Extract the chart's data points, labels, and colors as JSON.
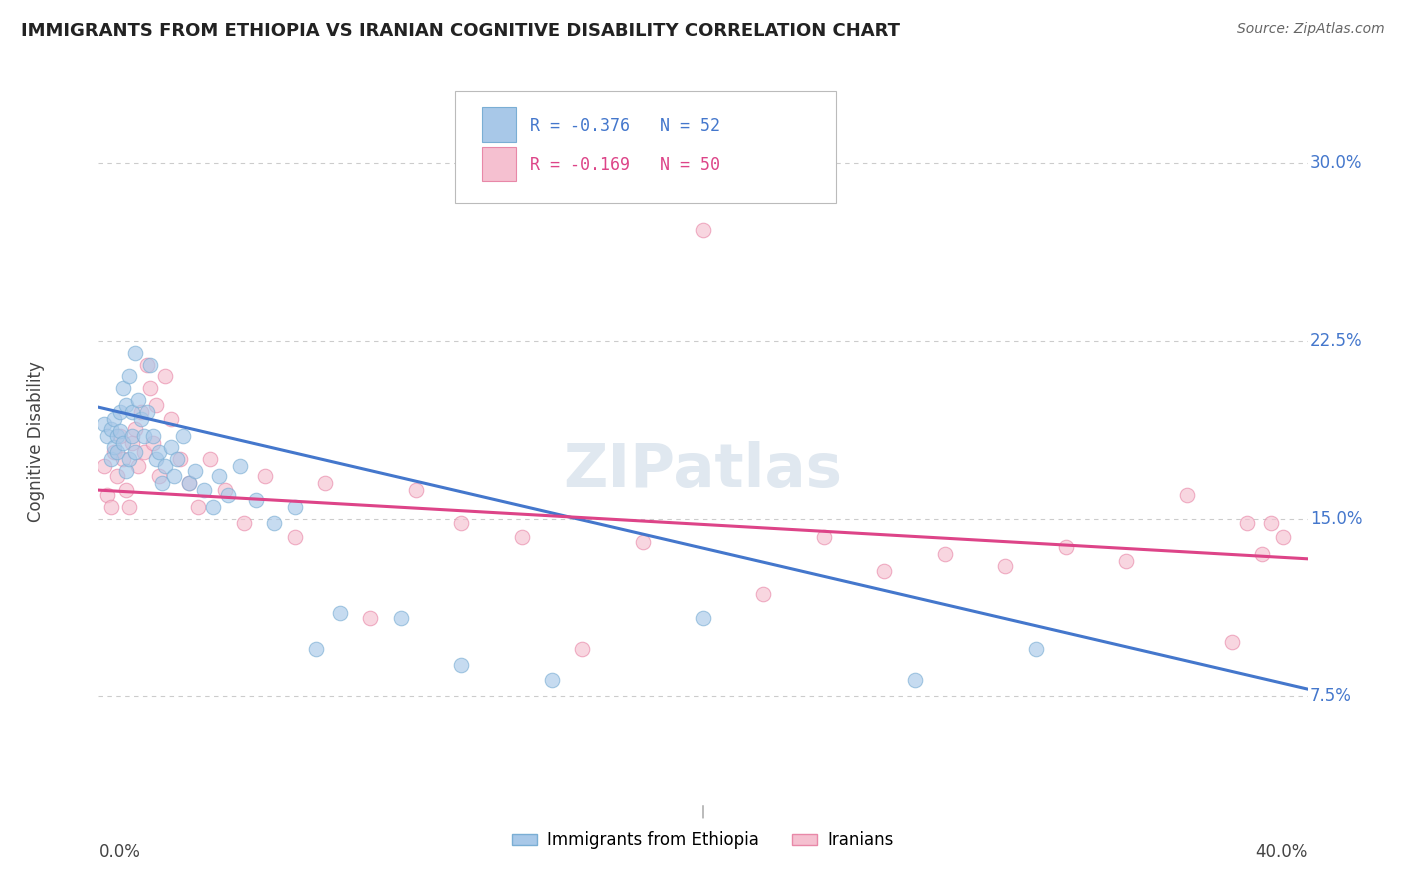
{
  "title": "IMMIGRANTS FROM ETHIOPIA VS IRANIAN COGNITIVE DISABILITY CORRELATION CHART",
  "source": "Source: ZipAtlas.com",
  "ylabel": "Cognitive Disability",
  "xlim": [
    0.0,
    0.4
  ],
  "ylim": [
    0.03,
    0.335
  ],
  "yticks": [
    0.075,
    0.15,
    0.225,
    0.3
  ],
  "ytick_labels": [
    "7.5%",
    "15.0%",
    "22.5%",
    "30.0%"
  ],
  "xtick_left": "0.0%",
  "xtick_right": "40.0%",
  "grid_color": "#cccccc",
  "background_color": "#ffffff",
  "ethiopia_color": "#a8c8e8",
  "ethiopia_edge_color": "#7aaed4",
  "iran_color": "#f5c0d0",
  "iran_edge_color": "#e888a8",
  "regression_ethiopia_color": "#4477cc",
  "regression_iran_color": "#dd4488",
  "watermark_color": "#e0e8f0",
  "R_ethiopia": -0.376,
  "N_ethiopia": 52,
  "R_iran": -0.169,
  "N_iran": 50,
  "legend_label_ethiopia": "Immigrants from Ethiopia",
  "legend_label_iran": "Iranians",
  "ethiopia_x": [
    0.002,
    0.003,
    0.004,
    0.004,
    0.005,
    0.005,
    0.006,
    0.006,
    0.007,
    0.007,
    0.008,
    0.008,
    0.009,
    0.009,
    0.01,
    0.01,
    0.011,
    0.011,
    0.012,
    0.012,
    0.013,
    0.014,
    0.015,
    0.016,
    0.017,
    0.018,
    0.019,
    0.02,
    0.021,
    0.022,
    0.024,
    0.025,
    0.026,
    0.028,
    0.03,
    0.032,
    0.035,
    0.038,
    0.04,
    0.043,
    0.047,
    0.052,
    0.058,
    0.065,
    0.072,
    0.08,
    0.1,
    0.12,
    0.15,
    0.2,
    0.27,
    0.31
  ],
  "ethiopia_y": [
    0.19,
    0.185,
    0.188,
    0.175,
    0.192,
    0.18,
    0.185,
    0.178,
    0.195,
    0.187,
    0.205,
    0.182,
    0.198,
    0.17,
    0.175,
    0.21,
    0.185,
    0.195,
    0.178,
    0.22,
    0.2,
    0.192,
    0.185,
    0.195,
    0.215,
    0.185,
    0.175,
    0.178,
    0.165,
    0.172,
    0.18,
    0.168,
    0.175,
    0.185,
    0.165,
    0.17,
    0.162,
    0.155,
    0.168,
    0.16,
    0.172,
    0.158,
    0.148,
    0.155,
    0.095,
    0.11,
    0.108,
    0.088,
    0.082,
    0.108,
    0.082,
    0.095
  ],
  "iran_x": [
    0.002,
    0.003,
    0.004,
    0.005,
    0.006,
    0.007,
    0.008,
    0.009,
    0.01,
    0.011,
    0.012,
    0.013,
    0.014,
    0.015,
    0.016,
    0.017,
    0.018,
    0.019,
    0.02,
    0.022,
    0.024,
    0.027,
    0.03,
    0.033,
    0.037,
    0.042,
    0.048,
    0.055,
    0.065,
    0.075,
    0.09,
    0.105,
    0.12,
    0.14,
    0.16,
    0.18,
    0.2,
    0.22,
    0.24,
    0.26,
    0.28,
    0.3,
    0.32,
    0.34,
    0.36,
    0.375,
    0.38,
    0.385,
    0.388,
    0.392
  ],
  "iran_y": [
    0.172,
    0.16,
    0.155,
    0.178,
    0.168,
    0.185,
    0.175,
    0.162,
    0.155,
    0.182,
    0.188,
    0.172,
    0.195,
    0.178,
    0.215,
    0.205,
    0.182,
    0.198,
    0.168,
    0.21,
    0.192,
    0.175,
    0.165,
    0.155,
    0.175,
    0.162,
    0.148,
    0.168,
    0.142,
    0.165,
    0.108,
    0.162,
    0.148,
    0.142,
    0.095,
    0.14,
    0.272,
    0.118,
    0.142,
    0.128,
    0.135,
    0.13,
    0.138,
    0.132,
    0.16,
    0.098,
    0.148,
    0.135,
    0.148,
    0.142
  ],
  "marker_size": 110,
  "marker_alpha": 0.65,
  "line_width": 2.2,
  "watermark": "ZIPatlas"
}
